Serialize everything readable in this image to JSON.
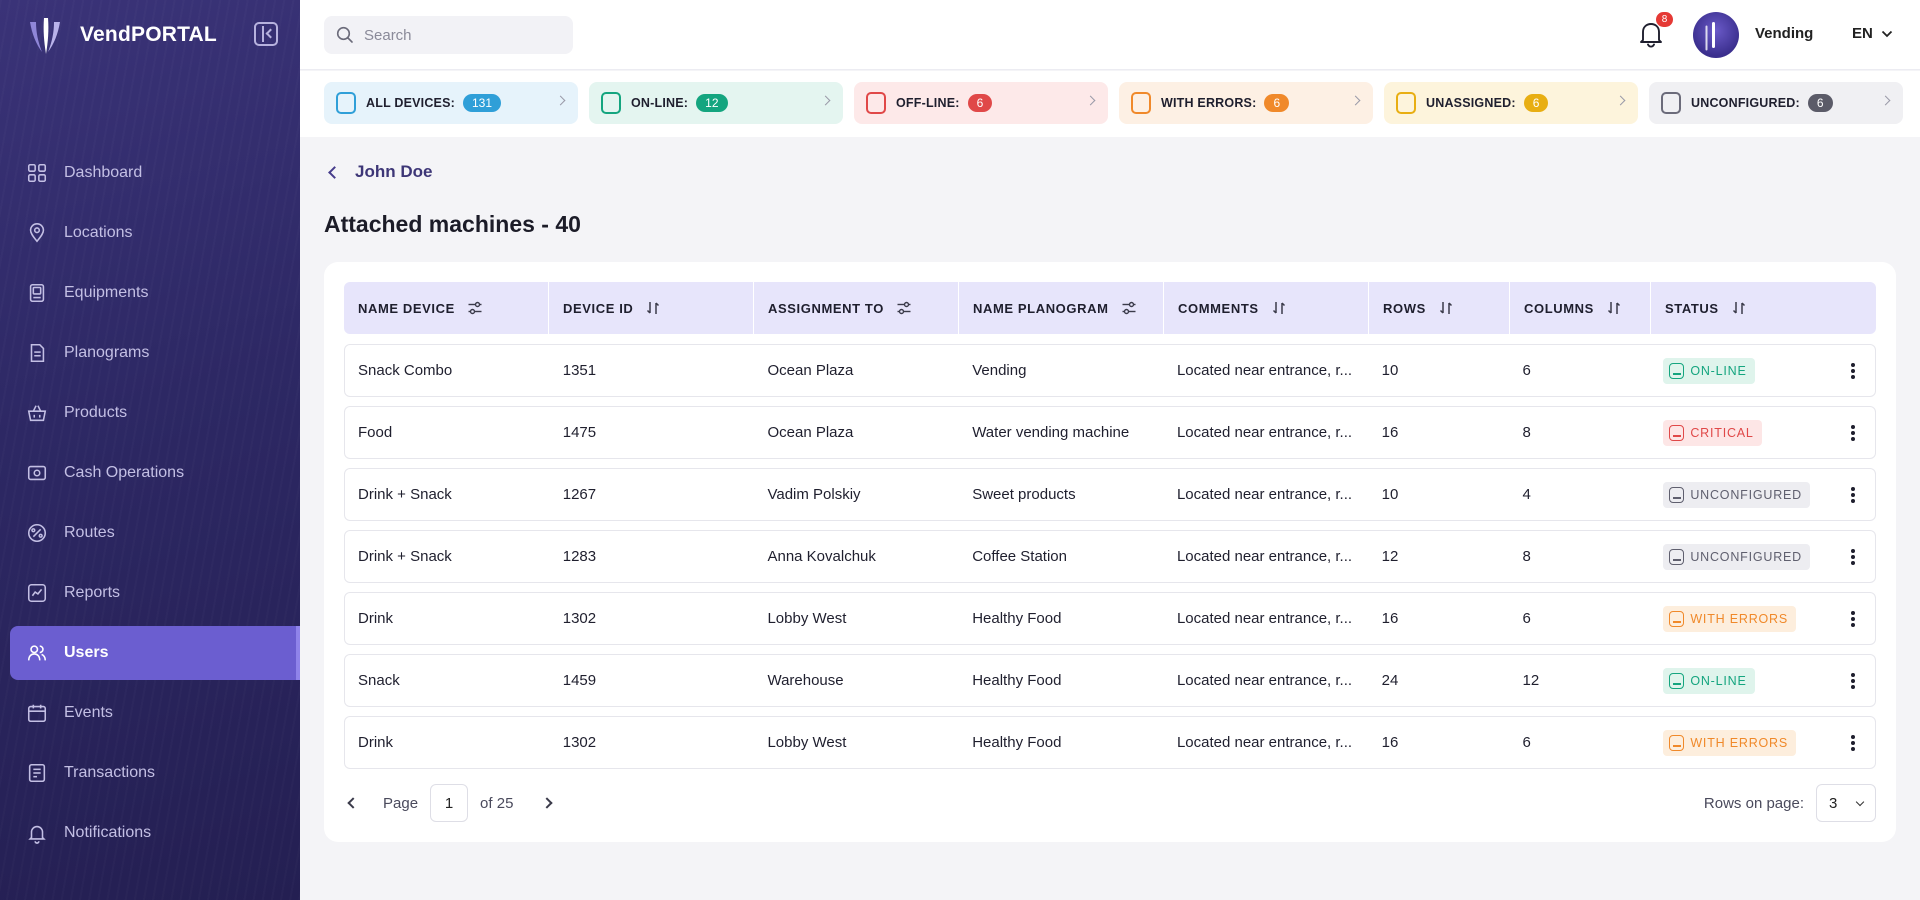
{
  "brand": {
    "name": "VendPORTAL"
  },
  "sidebar": {
    "items": [
      {
        "key": "dashboard",
        "label": "Dashboard",
        "icon": "grid-icon"
      },
      {
        "key": "locations",
        "label": "Locations",
        "icon": "map-pin-icon"
      },
      {
        "key": "equipments",
        "label": "Equipments",
        "icon": "vending-machine-icon"
      },
      {
        "key": "planograms",
        "label": "Planograms",
        "icon": "document-icon"
      },
      {
        "key": "products",
        "label": "Products",
        "icon": "basket-icon"
      },
      {
        "key": "cash",
        "label": "Cash Operations",
        "icon": "cash-icon"
      },
      {
        "key": "routes",
        "label": "Routes",
        "icon": "route-icon"
      },
      {
        "key": "reports",
        "label": "Reports",
        "icon": "chart-icon"
      },
      {
        "key": "users",
        "label": "Users",
        "icon": "users-icon",
        "active": true
      },
      {
        "key": "events",
        "label": "Events",
        "icon": "calendar-icon"
      },
      {
        "key": "transactions",
        "label": "Transactions",
        "icon": "receipt-icon"
      },
      {
        "key": "notifications",
        "label": "Notifications",
        "icon": "bell-icon"
      }
    ]
  },
  "header": {
    "search_placeholder": "Search",
    "notifications_count": "8",
    "user_name": "Vending",
    "language": "EN"
  },
  "stats": [
    {
      "label": "ALL DEVICES:",
      "count": "131",
      "bg": "#e6f3fb",
      "icon_color": "#2f9fd8",
      "badge_color": "#2f9fd8"
    },
    {
      "label": "ON-LINE:",
      "count": "12",
      "bg": "#e4f5f0",
      "icon_color": "#14a57f",
      "badge_color": "#14a57f"
    },
    {
      "label": "OFF-LINE:",
      "count": "6",
      "bg": "#fde9e9",
      "icon_color": "#e04848",
      "badge_color": "#e04848"
    },
    {
      "label": "WITH ERRORS:",
      "count": "6",
      "bg": "#fdf0e4",
      "icon_color": "#f0892a",
      "badge_color": "#f0892a"
    },
    {
      "label": "UNASSIGNED:",
      "count": "6",
      "bg": "#fdf4dc",
      "icon_color": "#e8ae12",
      "badge_color": "#e8ae12"
    },
    {
      "label": "UNCONFIGURED:",
      "count": "6",
      "bg": "#f0f0f3",
      "icon_color": "#6b6b7a",
      "badge_color": "#5b5b68"
    }
  ],
  "back_link": {
    "label": "John Doe"
  },
  "page_title": "Attached machines - 40",
  "table": {
    "columns": [
      {
        "label": "NAME DEVICE",
        "icon": "filter-icon"
      },
      {
        "label": "DEVICE ID",
        "icon": "sort-icon"
      },
      {
        "label": "ASSIGNMENT TO",
        "icon": "filter-icon"
      },
      {
        "label": "NAME PLANOGRAM",
        "icon": "filter-icon"
      },
      {
        "label": "COMMENTS",
        "icon": "sort-icon"
      },
      {
        "label": "ROWS",
        "icon": "sort-icon"
      },
      {
        "label": "COLUMNS",
        "icon": "sort-icon"
      },
      {
        "label": "STATUS",
        "icon": "sort-icon"
      }
    ],
    "rows": [
      {
        "name": "Snack Combo",
        "id": "1351",
        "assignment": "Ocean Plaza",
        "planogram": "Vending",
        "comments": "Located near entrance, r...",
        "rows": "10",
        "columns": "6",
        "status": "ON-LINE",
        "status_kind": "online"
      },
      {
        "name": "Food",
        "id": "1475",
        "assignment": "Ocean Plaza",
        "planogram": "Water vending machine",
        "comments": "Located near entrance, r...",
        "rows": "16",
        "columns": "8",
        "status": "CRITICAL",
        "status_kind": "critical"
      },
      {
        "name": "Drink + Snack",
        "id": "1267",
        "assignment": "Vadim Polskiy",
        "planogram": "Sweet products",
        "comments": "Located near entrance, r...",
        "rows": "10",
        "columns": "4",
        "status": "UNCONFIGURED",
        "status_kind": "unconfigured"
      },
      {
        "name": "Drink + Snack",
        "id": "1283",
        "assignment": "Anna Kovalchuk",
        "planogram": "Coffee Station",
        "comments": "Located near entrance, r...",
        "rows": "12",
        "columns": "8",
        "status": "UNCONFIGURED",
        "status_kind": "unconfigured"
      },
      {
        "name": "Drink",
        "id": "1302",
        "assignment": "Lobby West",
        "planogram": "Healthy Food",
        "comments": "Located near entrance, r...",
        "rows": "16",
        "columns": "6",
        "status": "WITH ERRORS",
        "status_kind": "errors"
      },
      {
        "name": "Snack",
        "id": "1459",
        "assignment": "Warehouse",
        "planogram": "Healthy Food",
        "comments": "Located near entrance, r...",
        "rows": "24",
        "columns": "12",
        "status": "ON-LINE",
        "status_kind": "online"
      },
      {
        "name": "Drink",
        "id": "1302",
        "assignment": "Lobby West",
        "planogram": "Healthy Food",
        "comments": "Located near entrance, r...",
        "rows": "16",
        "columns": "6",
        "status": "WITH ERRORS",
        "status_kind": "errors"
      }
    ]
  },
  "status_styles": {
    "online": {
      "bg": "#dff4ec",
      "fg": "#14a57f"
    },
    "critical": {
      "bg": "#fde6e6",
      "fg": "#e04848"
    },
    "unconfigured": {
      "bg": "#ededf1",
      "fg": "#5f5f6e"
    },
    "errors": {
      "bg": "#fdeedd",
      "fg": "#f0892a"
    }
  },
  "pagination": {
    "page_label": "Page",
    "current_page": "1",
    "total_label": "of 25",
    "rows_label": "Rows on page:",
    "rows_value": "3"
  }
}
